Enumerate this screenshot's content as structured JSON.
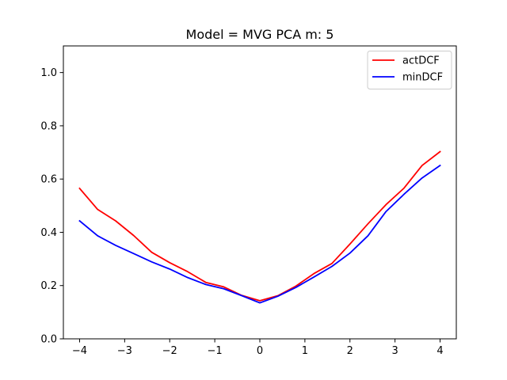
{
  "chart_data": {
    "type": "line",
    "title": "Model = MVG PCA m: 5",
    "xlabel": "",
    "ylabel": "",
    "xlim": [
      -4.36,
      4.36
    ],
    "ylim": [
      0.0,
      1.1
    ],
    "xticks": [
      -4,
      -3,
      -2,
      -1,
      0,
      1,
      2,
      3,
      4
    ],
    "xtick_labels": [
      "−4",
      "−3",
      "−2",
      "−1",
      "0",
      "1",
      "2",
      "3",
      "4"
    ],
    "yticks": [
      0.0,
      0.2,
      0.4,
      0.6,
      0.8,
      1.0
    ],
    "ytick_labels": [
      "0.0",
      "0.2",
      "0.4",
      "0.6",
      "0.8",
      "1.0"
    ],
    "grid": false,
    "legend": "top-right",
    "x": [
      -4.0,
      -3.6,
      -3.2,
      -2.8,
      -2.4,
      -2.0,
      -1.6,
      -1.2,
      -0.8,
      -0.4,
      0.0,
      0.4,
      0.8,
      1.2,
      1.6,
      2.0,
      2.4,
      2.8,
      3.2,
      3.6,
      4.0
    ],
    "series": [
      {
        "name": "actDCF",
        "color": "#ff0000",
        "values": [
          0.565,
          0.486,
          0.443,
          0.388,
          0.325,
          0.286,
          0.252,
          0.212,
          0.195,
          0.163,
          0.143,
          0.162,
          0.198,
          0.245,
          0.283,
          0.356,
          0.432,
          0.504,
          0.566,
          0.651,
          0.703
        ]
      },
      {
        "name": "minDCF",
        "color": "#0000ff",
        "values": [
          0.443,
          0.387,
          0.351,
          0.32,
          0.289,
          0.262,
          0.23,
          0.204,
          0.188,
          0.162,
          0.135,
          0.16,
          0.193,
          0.232,
          0.272,
          0.322,
          0.387,
          0.478,
          0.543,
          0.604,
          0.651
        ]
      }
    ]
  }
}
